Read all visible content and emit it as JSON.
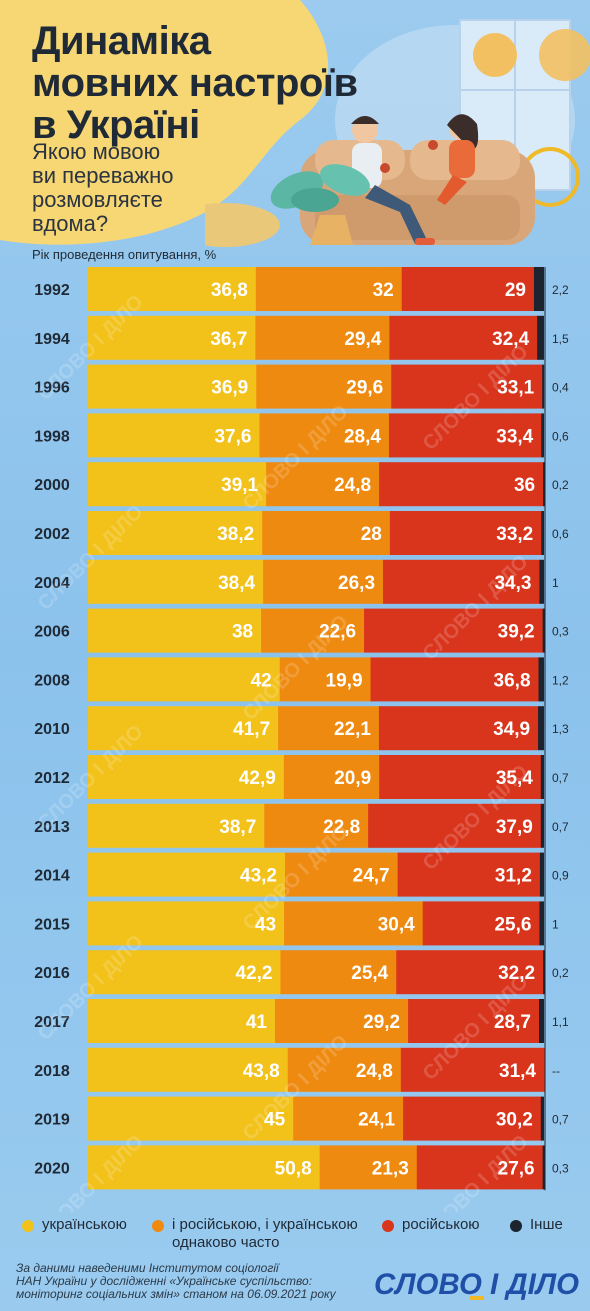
{
  "header": {
    "title": "Динаміка\nмовних настроїв\nв Україні",
    "question": "Якою мовою\nви переважно\nрозмовляєте\nвдома?",
    "axis_note": "Рік проведення опитування, %"
  },
  "colors": {
    "ukrainian": "#f2c21b",
    "both": "#ee8a10",
    "russian": "#d9341c",
    "other": "#1d2430",
    "background": "#8fc4ec"
  },
  "chart_data": {
    "type": "bar",
    "stacked": true,
    "orientation": "horizontal",
    "categories": [
      "1992",
      "1994",
      "1996",
      "1998",
      "2000",
      "2002",
      "2004",
      "2006",
      "2008",
      "2010",
      "2012",
      "2013",
      "2014",
      "2015",
      "2016",
      "2017",
      "2018",
      "2019",
      "2020"
    ],
    "series": [
      {
        "name": "українською",
        "values": [
          36.8,
          36.7,
          36.9,
          37.6,
          39.1,
          38.2,
          38.4,
          38,
          42,
          41.7,
          42.9,
          38.7,
          43.2,
          43,
          42.2,
          41,
          43.8,
          45,
          50.8
        ]
      },
      {
        "name": "і російською, і українською однаково часто",
        "values": [
          32,
          29.4,
          29.6,
          28.4,
          24.8,
          28,
          26.3,
          22.6,
          19.9,
          22.1,
          20.9,
          22.8,
          24.7,
          30.4,
          25.4,
          29.2,
          24.8,
          24.1,
          21.3
        ]
      },
      {
        "name": "російською",
        "values": [
          29,
          32.4,
          33.1,
          33.4,
          36,
          33.2,
          34.3,
          39.2,
          36.8,
          34.9,
          35.4,
          37.9,
          31.2,
          25.6,
          32.2,
          28.7,
          31.4,
          30.2,
          27.6
        ]
      },
      {
        "name": "Інше",
        "values": [
          2.2,
          1.5,
          0.4,
          0.6,
          0.2,
          0.6,
          1,
          0.3,
          1.2,
          1.3,
          0.7,
          0.7,
          0.9,
          1,
          0.2,
          1.1,
          null,
          0.7,
          0.3
        ]
      }
    ],
    "labels": {
      "ukrainian": [
        "36,8",
        "36,7",
        "36,9",
        "37,6",
        "39,1",
        "38,2",
        "38,4",
        "38",
        "42",
        "41,7",
        "42,9",
        "38,7",
        "43,2",
        "43",
        "42,2",
        "41",
        "43,8",
        "45",
        "50,8"
      ],
      "both": [
        "32",
        "29,4",
        "29,6",
        "28,4",
        "24,8",
        "28",
        "26,3",
        "22,6",
        "19,9",
        "22,1",
        "20,9",
        "22,8",
        "24,7",
        "30,4",
        "25,4",
        "29,2",
        "24,8",
        "24,1",
        "21,3"
      ],
      "russian": [
        "29",
        "32,4",
        "33,1",
        "33,4",
        "36",
        "33,2",
        "34,3",
        "39,2",
        "36,8",
        "34,9",
        "35,4",
        "37,9",
        "31,2",
        "25,6",
        "32,2",
        "28,7",
        "31,4",
        "30,2",
        "27,6"
      ],
      "other": [
        "2,2",
        "1,5",
        "0,4",
        "0,6",
        "0,2",
        "0,6",
        "1",
        "0,3",
        "1,2",
        "1,3",
        "0,7",
        "0,7",
        "0,9",
        "1",
        "0,2",
        "1,1",
        "--",
        "0,7",
        "0,3"
      ]
    },
    "xlim": [
      0,
      100
    ],
    "legend_position": "bottom"
  },
  "legend": {
    "ukrainian": "українською",
    "both": "і російською, і українською\nоднаково часто",
    "russian": "російською",
    "other": "Інше"
  },
  "footer": {
    "source": "За даними  наведеними Інститутом соціології\nНАН України у дослідженні «Українське суспільство:\nмоніторинг соціальних змін» станом на 06.09.2021 року",
    "logo": "СЛОВО І ДІЛО",
    "watermark": "СЛОВО І ДІЛО"
  }
}
